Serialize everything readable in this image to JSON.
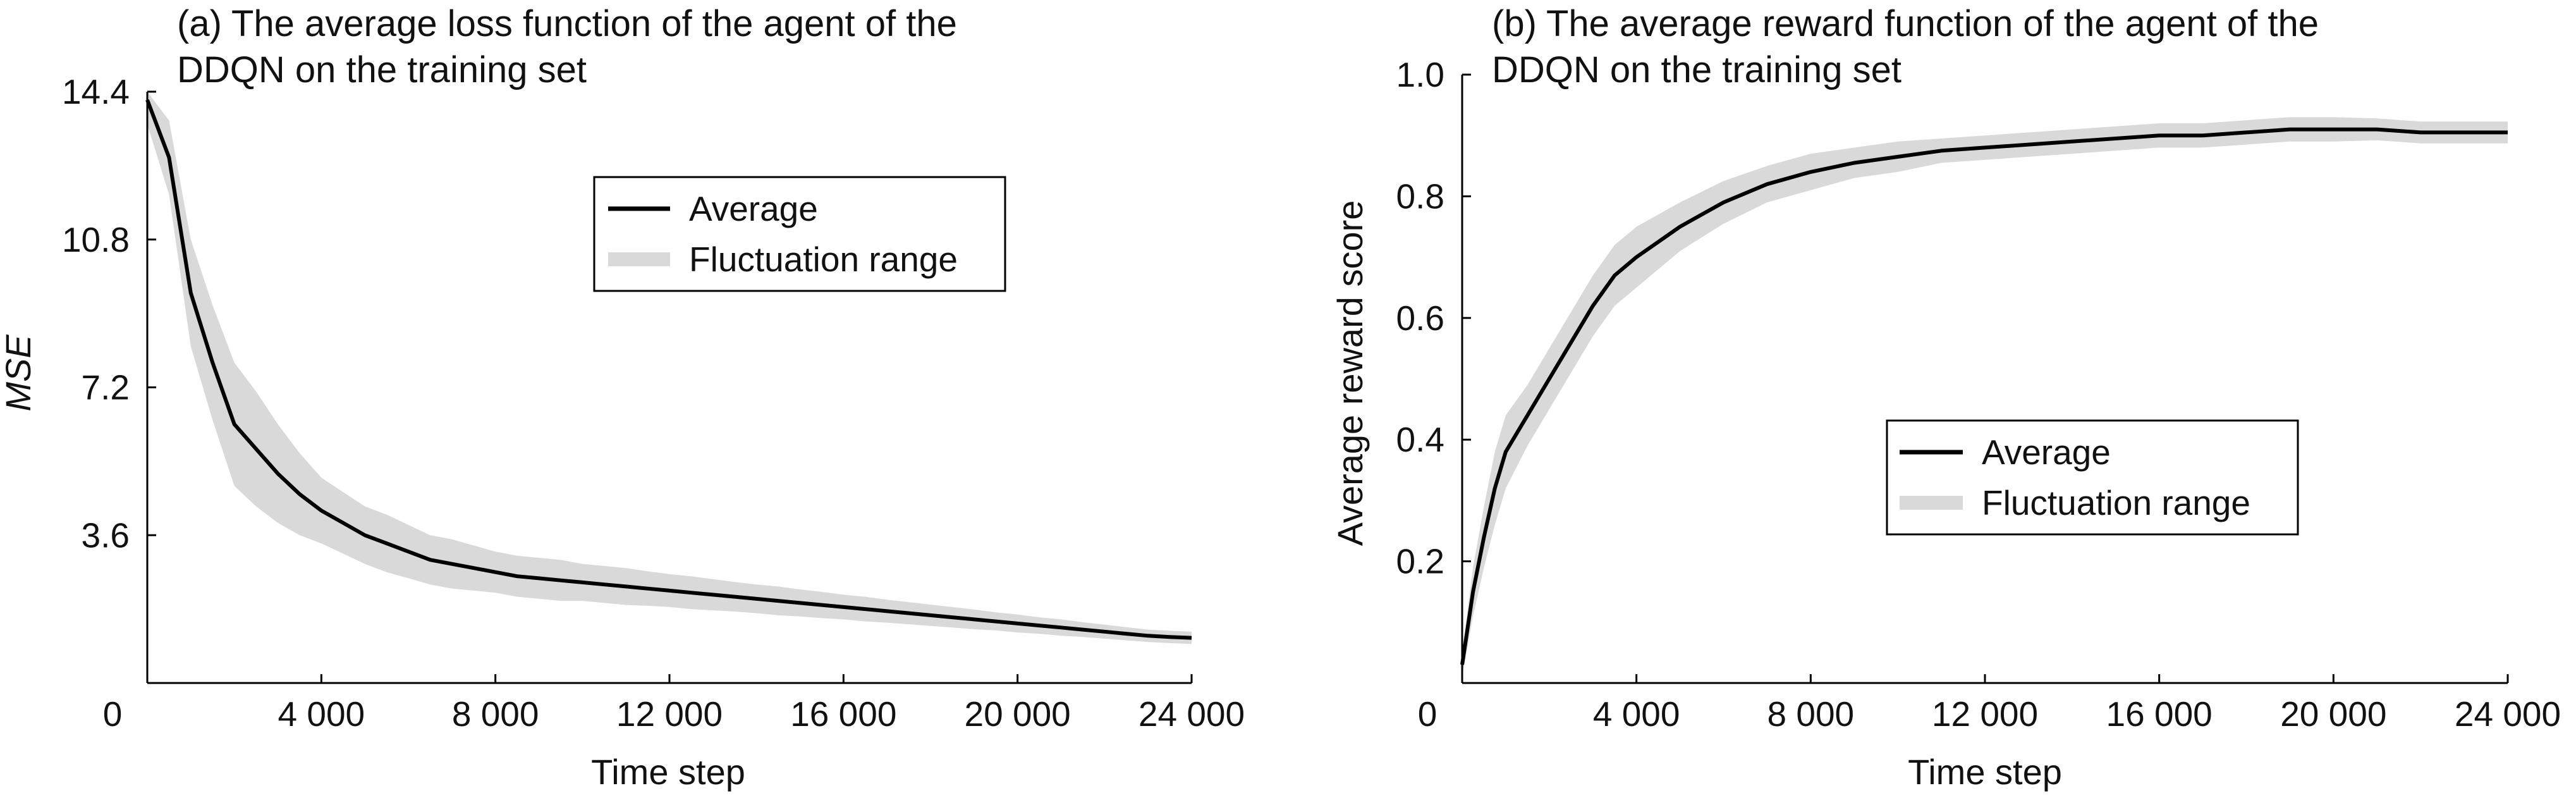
{
  "chart_data": [
    {
      "type": "line",
      "panel": "a",
      "title_lines": [
        "(a) The average loss function of  the agent of the",
        "DDQN on the training set"
      ],
      "xlabel": "Time step",
      "ylabel": "MSE",
      "xlim": [
        0,
        24000
      ],
      "ylim": [
        0,
        14.4
      ],
      "x_ticks": [
        0,
        4000,
        8000,
        12000,
        16000,
        20000,
        24000
      ],
      "x_tick_labels": [
        "0",
        "4 000",
        "8 000",
        "12 000",
        "16 000",
        "20 000",
        "24 000"
      ],
      "y_ticks": [
        3.6,
        7.2,
        10.8,
        14.4
      ],
      "y_tick_labels": [
        "3.6",
        "7.2",
        "10.8",
        "14.4"
      ],
      "legend": {
        "position": "upper-center",
        "entries": [
          "Average",
          "Fluctuation range"
        ]
      },
      "colors": {
        "average": "#000000",
        "band": "#d9d9d9"
      },
      "series": [
        {
          "name": "Average",
          "x": [
            0,
            500,
            1000,
            1500,
            2000,
            2500,
            3000,
            3500,
            4000,
            4500,
            5000,
            5500,
            6000,
            6500,
            7000,
            7500,
            8000,
            8500,
            9000,
            9500,
            10000,
            10500,
            11000,
            11500,
            12000,
            12500,
            13000,
            13500,
            14000,
            14500,
            15000,
            15500,
            16000,
            16500,
            17000,
            17500,
            18000,
            18500,
            19000,
            19500,
            20000,
            20500,
            21000,
            21500,
            22000,
            22500,
            23000,
            23500,
            24000
          ],
          "values": [
            14.2,
            12.8,
            9.5,
            7.8,
            6.3,
            5.7,
            5.1,
            4.6,
            4.2,
            3.9,
            3.6,
            3.4,
            3.2,
            3.0,
            2.9,
            2.8,
            2.7,
            2.6,
            2.55,
            2.5,
            2.45,
            2.4,
            2.35,
            2.3,
            2.25,
            2.2,
            2.15,
            2.1,
            2.05,
            2.0,
            1.95,
            1.9,
            1.85,
            1.8,
            1.75,
            1.7,
            1.65,
            1.6,
            1.55,
            1.5,
            1.45,
            1.4,
            1.35,
            1.3,
            1.25,
            1.2,
            1.15,
            1.12,
            1.1
          ]
        }
      ],
      "band": {
        "name": "Fluctuation range",
        "half_width": [
          0.6,
          0.9,
          1.3,
          1.4,
          1.5,
          1.4,
          1.2,
          1.0,
          0.8,
          0.75,
          0.7,
          0.7,
          0.65,
          0.6,
          0.6,
          0.55,
          0.5,
          0.5,
          0.5,
          0.5,
          0.45,
          0.45,
          0.45,
          0.42,
          0.4,
          0.4,
          0.38,
          0.36,
          0.35,
          0.35,
          0.33,
          0.32,
          0.3,
          0.3,
          0.28,
          0.27,
          0.26,
          0.25,
          0.24,
          0.22,
          0.22,
          0.2,
          0.2,
          0.18,
          0.17,
          0.16,
          0.15,
          0.15,
          0.15
        ]
      }
    },
    {
      "type": "line",
      "panel": "b",
      "title_lines": [
        "(b) The average reward function of the agent of the",
        "DDQN on the training set"
      ],
      "xlabel": "Time step",
      "ylabel": "Average reward score",
      "xlim": [
        0,
        24000
      ],
      "ylim": [
        0,
        1.0
      ],
      "x_ticks": [
        0,
        4000,
        8000,
        12000,
        16000,
        20000,
        24000
      ],
      "x_tick_labels": [
        "0",
        "4 000",
        "8 000",
        "12 000",
        "16 000",
        "20 000",
        "24 000"
      ],
      "y_ticks": [
        0.2,
        0.4,
        0.6,
        0.8,
        1.0
      ],
      "y_tick_labels": [
        "0.2",
        "0.4",
        "0.6",
        "0.8",
        "1.0"
      ],
      "legend": {
        "position": "center-right",
        "entries": [
          "Average",
          "Fluctuation range"
        ]
      },
      "colors": {
        "average": "#000000",
        "band": "#d9d9d9"
      },
      "series": [
        {
          "name": "Average",
          "x": [
            0,
            250,
            500,
            750,
            1000,
            1500,
            2000,
            2500,
            3000,
            3500,
            4000,
            5000,
            6000,
            7000,
            8000,
            9000,
            10000,
            11000,
            12000,
            13000,
            14000,
            15000,
            16000,
            17000,
            18000,
            19000,
            20000,
            21000,
            22000,
            23000,
            24000
          ],
          "values": [
            0.03,
            0.15,
            0.24,
            0.32,
            0.38,
            0.44,
            0.5,
            0.56,
            0.62,
            0.67,
            0.7,
            0.75,
            0.79,
            0.82,
            0.84,
            0.855,
            0.865,
            0.875,
            0.88,
            0.885,
            0.89,
            0.895,
            0.9,
            0.9,
            0.905,
            0.91,
            0.91,
            0.91,
            0.905,
            0.905,
            0.905
          ]
        }
      ],
      "band": {
        "name": "Fluctuation range",
        "half_width": [
          0.02,
          0.04,
          0.05,
          0.06,
          0.06,
          0.05,
          0.05,
          0.05,
          0.05,
          0.05,
          0.05,
          0.04,
          0.035,
          0.03,
          0.03,
          0.025,
          0.025,
          0.02,
          0.02,
          0.02,
          0.02,
          0.02,
          0.02,
          0.02,
          0.02,
          0.02,
          0.02,
          0.018,
          0.018,
          0.018,
          0.018
        ]
      }
    }
  ]
}
